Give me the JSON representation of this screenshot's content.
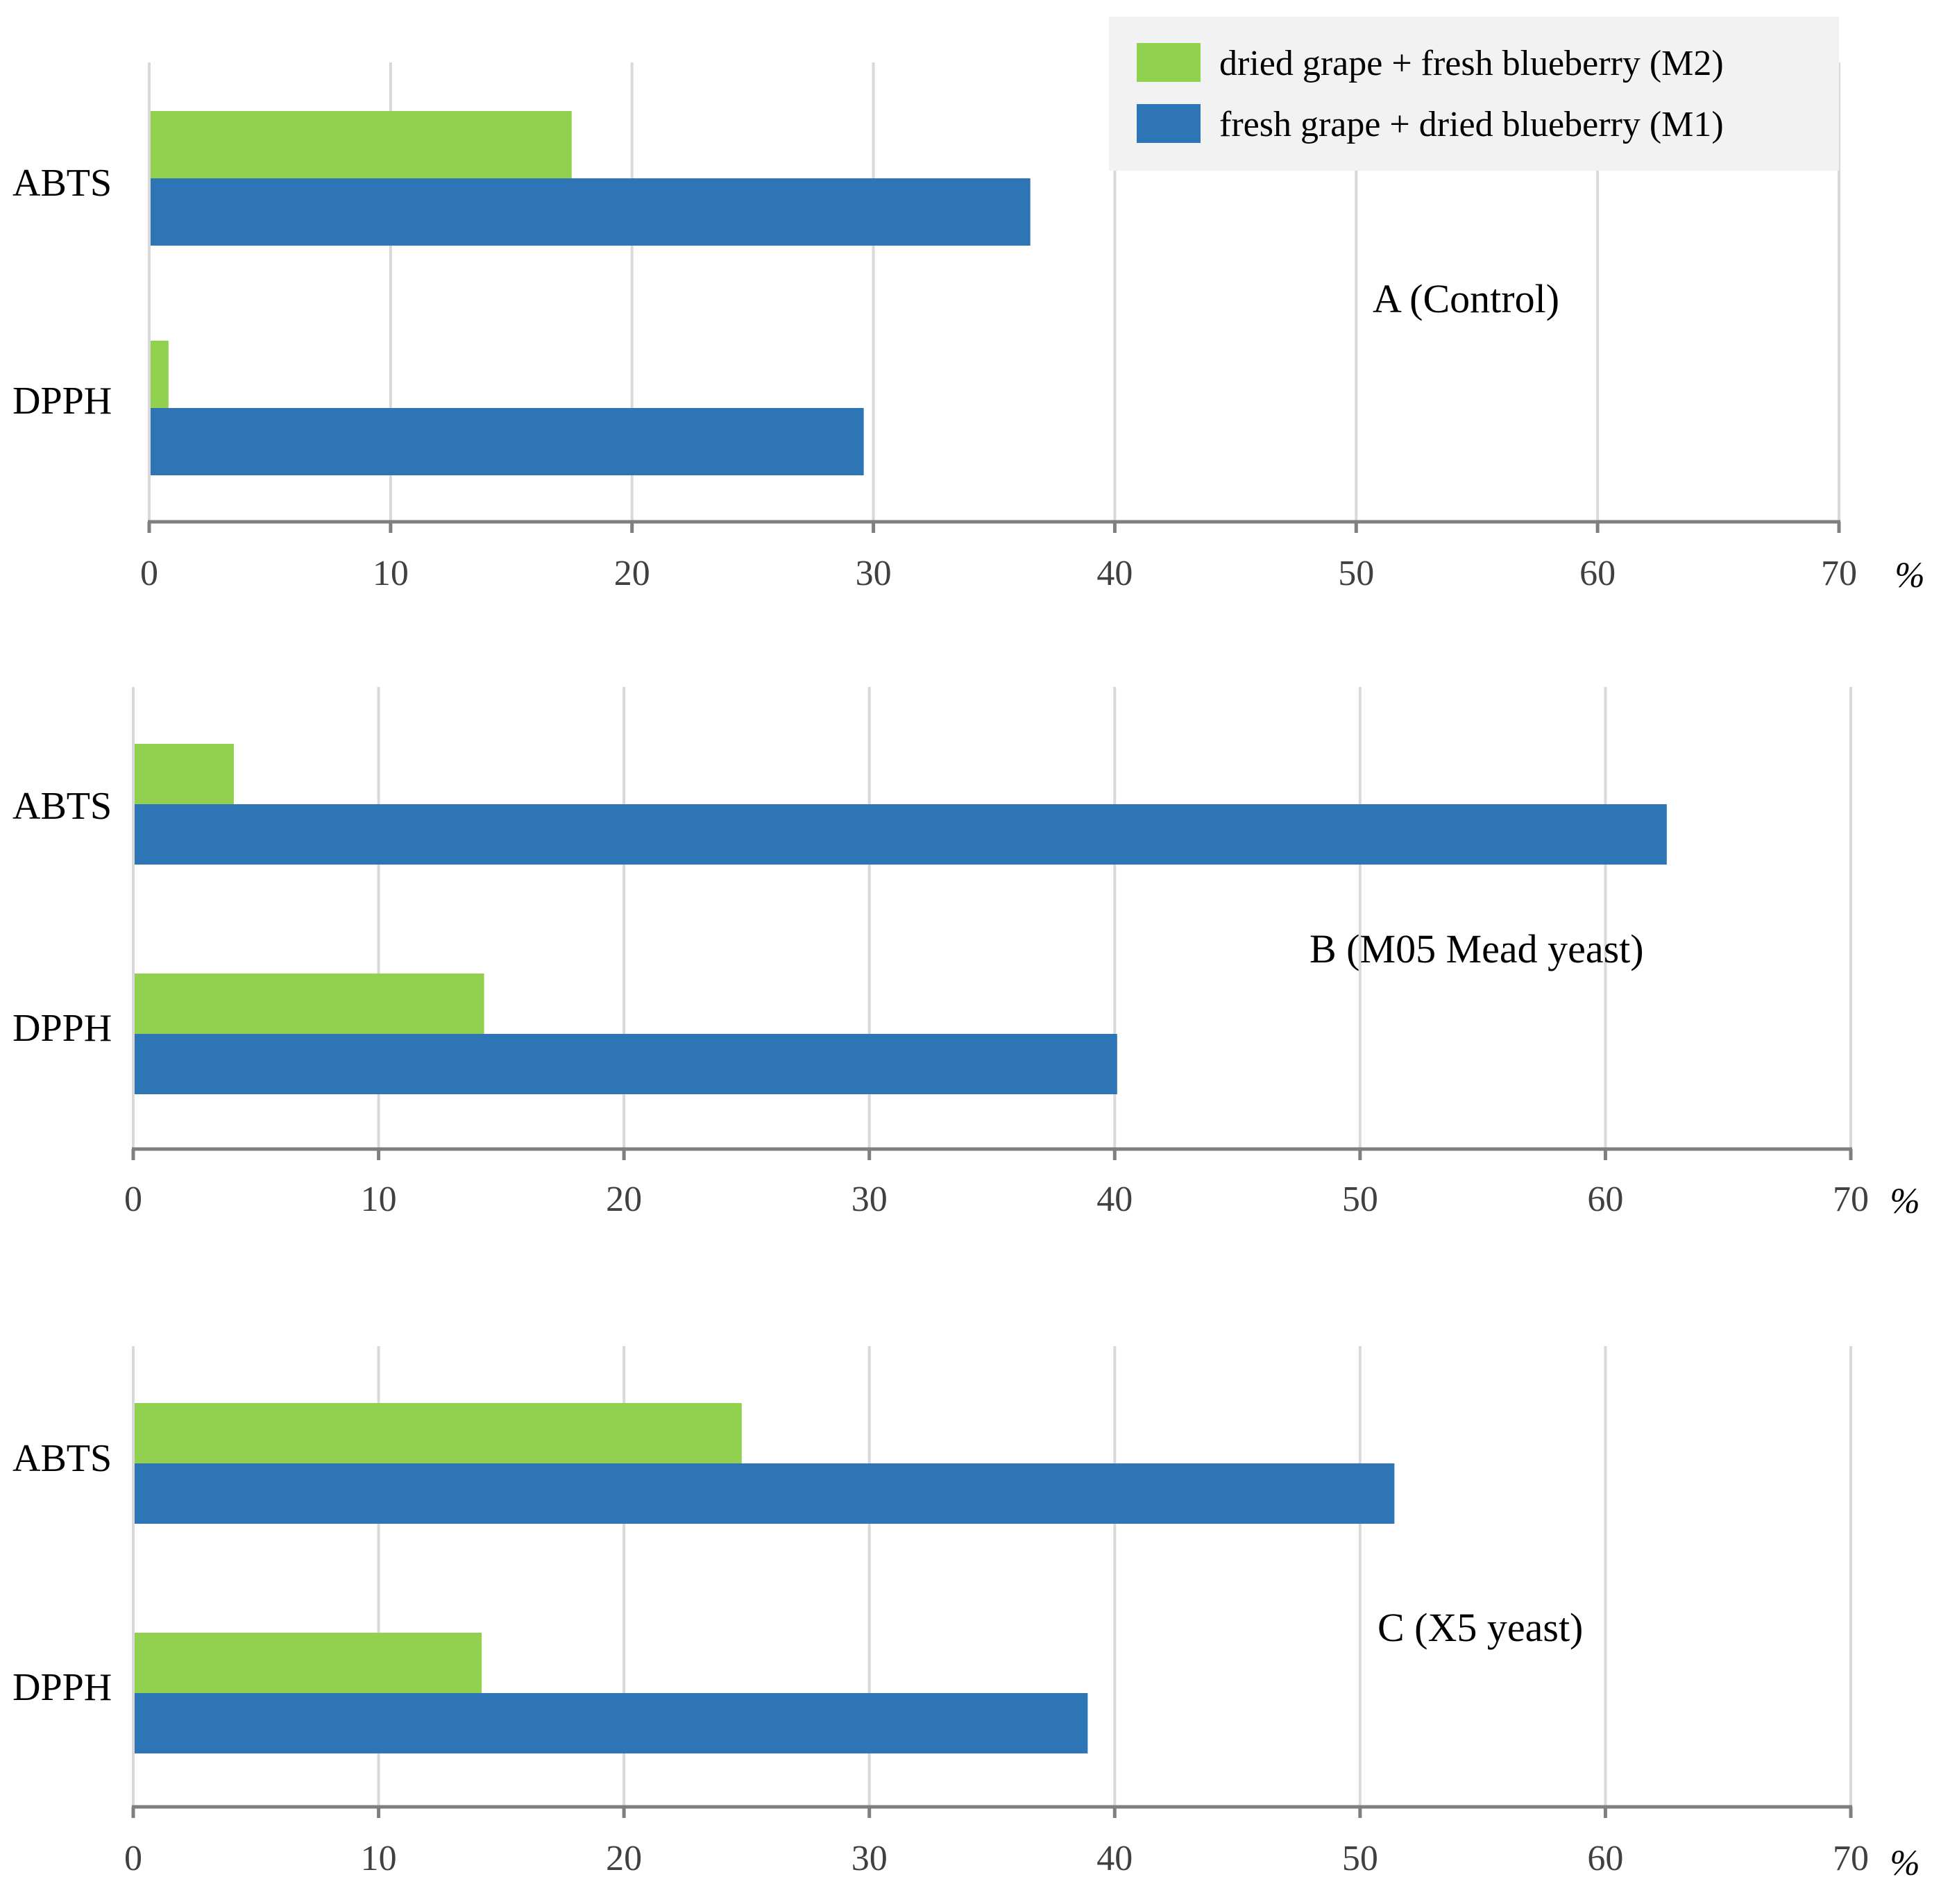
{
  "legend": {
    "entries": [
      {
        "label": "dried grape + fresh blueberry (M2)",
        "color": "#92d050"
      },
      {
        "label": "fresh grape + dried blueberry (M1)",
        "color": "#2e75b6"
      }
    ],
    "background": "#f2f2f2"
  },
  "chart_data": [
    {
      "type": "bar",
      "orientation": "horizontal",
      "title": "A (Control)",
      "categories": [
        "ABTS",
        "DPPH"
      ],
      "series": [
        {
          "name": "dried grape + fresh blueberry (M2)",
          "color": "#92d050",
          "values": [
            17.5,
            0.8
          ]
        },
        {
          "name": "fresh grape + dried blueberry (M1)",
          "color": "#2e75b6",
          "values": [
            36.5,
            29.6
          ]
        }
      ],
      "xlim": [
        0,
        70
      ],
      "xticks": [
        0,
        10,
        20,
        30,
        40,
        50,
        60,
        70
      ],
      "xlabel": "%",
      "grid": true
    },
    {
      "type": "bar",
      "orientation": "horizontal",
      "title": "B (M05 Mead yeast)",
      "categories": [
        "ABTS",
        "DPPH"
      ],
      "series": [
        {
          "name": "dried grape + fresh blueberry (M2)",
          "color": "#92d050",
          "values": [
            4.1,
            14.3
          ]
        },
        {
          "name": "fresh grape + dried blueberry (M1)",
          "color": "#2e75b6",
          "values": [
            62.5,
            40.1
          ]
        }
      ],
      "xlim": [
        0,
        70
      ],
      "xticks": [
        0,
        10,
        20,
        30,
        40,
        50,
        60,
        70
      ],
      "xlabel": "%",
      "grid": true
    },
    {
      "type": "bar",
      "orientation": "horizontal",
      "title": "C (X5 yeast)",
      "categories": [
        "ABTS",
        "DPPH"
      ],
      "series": [
        {
          "name": "dried grape + fresh blueberry (M2)",
          "color": "#92d050",
          "values": [
            24.8,
            14.2
          ]
        },
        {
          "name": "fresh grape + dried blueberry (M1)",
          "color": "#2e75b6",
          "values": [
            51.4,
            38.9
          ]
        }
      ],
      "xlim": [
        0,
        70
      ],
      "xticks": [
        0,
        10,
        20,
        30,
        40,
        50,
        60,
        70
      ],
      "xlabel": "%",
      "grid": true
    }
  ]
}
